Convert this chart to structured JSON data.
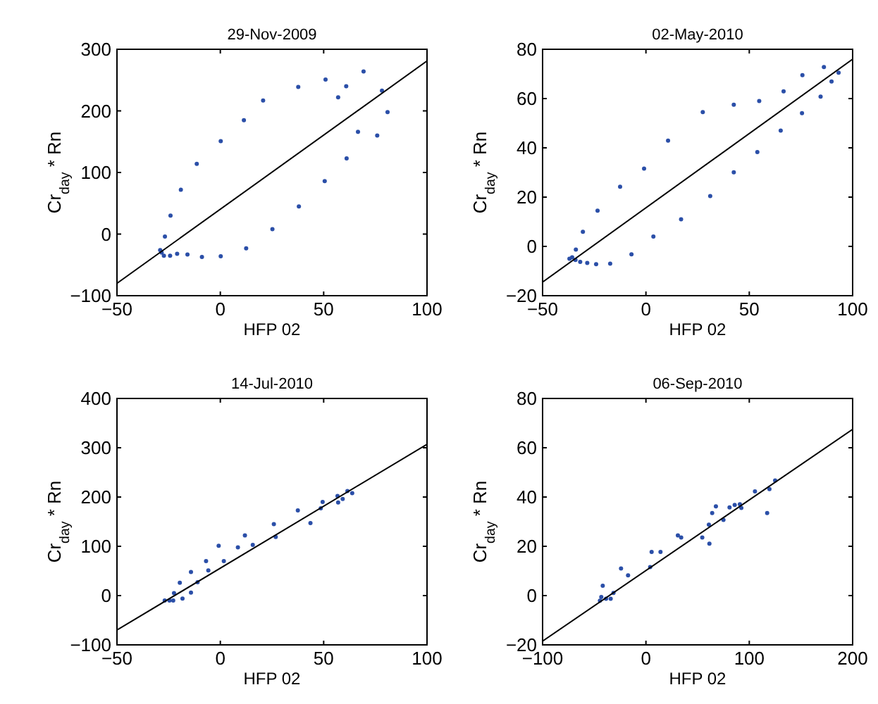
{
  "chart_data": [
    {
      "type": "scatter",
      "title": "29-Nov-2009",
      "xlabel": "HFP 02",
      "ylabel": "Cr$_{day}$ * Rn",
      "xlim": [
        -50,
        100
      ],
      "ylim": [
        -100,
        300
      ],
      "xticks": [
        -50,
        0,
        50,
        100
      ],
      "yticks": [
        -100,
        0,
        100,
        200,
        300
      ],
      "series": [
        {
          "type": "scatter",
          "color": "#2b4fa8",
          "marker": "circle",
          "x": [
            -26.8,
            -24.1,
            -19.1,
            -11.4,
            0.2,
            11.4,
            20.7,
            37.7,
            50.9,
            60.9,
            57,
            69.3,
            78.2,
            80.9,
            75.9,
            66.6,
            61.1,
            50.5,
            38,
            25.2,
            12.5,
            0.2,
            -8.9,
            -15.9,
            -20.9,
            -24.3,
            -27.3,
            -28.4,
            -29.1
          ],
          "values": [
            -4,
            30,
            72,
            114,
            151,
            185,
            217,
            239,
            251,
            240,
            222,
            264,
            233,
            198,
            160,
            166,
            123,
            86,
            45,
            8,
            -23,
            -36,
            -37,
            -33,
            -32,
            -35,
            -35,
            -30,
            -26
          ]
        },
        {
          "type": "line",
          "color": "#000000",
          "x": [
            -50,
            100
          ],
          "values": [
            -80,
            281
          ]
        }
      ]
    },
    {
      "type": "scatter",
      "title": "02-May-2010",
      "xlabel": "HFP 02",
      "ylabel": "Cr$_{day}$ * Rn",
      "xlim": [
        -50,
        100
      ],
      "ylim": [
        -20,
        80
      ],
      "xticks": [
        -50,
        0,
        50,
        100
      ],
      "yticks": [
        -20,
        0,
        20,
        40,
        60,
        80
      ],
      "series": [
        {
          "type": "scatter",
          "color": "#2b4fa8",
          "marker": "circle",
          "x": [
            -37,
            -35.7,
            -33.9,
            -30.5,
            -23.4,
            -12.5,
            -0.9,
            10.7,
            27.5,
            42.5,
            54.8,
            66.6,
            75.7,
            86.1,
            93.2,
            89.8,
            84.5,
            75.5,
            65.2,
            53.9,
            42.5,
            31.1,
            17,
            3.6,
            -7,
            -17.3,
            -24.1,
            -28.4,
            -31.8,
            -34.1
          ],
          "values": [
            -5,
            -4.4,
            -1.3,
            5.9,
            14.5,
            24.2,
            31.6,
            42.9,
            54.5,
            57.5,
            59,
            62.9,
            69.5,
            72.8,
            70.5,
            66.9,
            60.8,
            54.1,
            47,
            38.3,
            30.1,
            20.4,
            11,
            4,
            -3.2,
            -7,
            -7.2,
            -6.7,
            -6.3,
            -5.5
          ]
        },
        {
          "type": "line",
          "color": "#000000",
          "x": [
            -50,
            100
          ],
          "values": [
            -14.5,
            76
          ]
        }
      ]
    },
    {
      "type": "scatter",
      "title": "14-Jul-2010",
      "xlabel": "HFP 02",
      "ylabel": "Cr$_{day}$ * Rn",
      "xlim": [
        -50,
        100
      ],
      "ylim": [
        -100,
        400
      ],
      "xticks": [
        -50,
        0,
        50,
        100
      ],
      "yticks": [
        -100,
        0,
        100,
        200,
        300,
        400
      ],
      "series": [
        {
          "type": "scatter",
          "color": "#2b4fa8",
          "marker": "circle",
          "x": [
            -26.9,
            -24.6,
            -22.4,
            -22.8,
            -19.6,
            -18.3,
            -14.2,
            -14.2,
            -11,
            -6.9,
            -5.8,
            -0.8,
            1.7,
            8.5,
            11.9,
            15.7,
            25.9,
            26.8,
            37.5,
            43.6,
            48.6,
            49.5,
            56.7,
            57,
            59.2,
            61.5,
            63.8
          ],
          "values": [
            -10,
            -10,
            5,
            -10,
            26,
            -6,
            48,
            6,
            27,
            70,
            51,
            101,
            70,
            98,
            122,
            103,
            145,
            119,
            173,
            147,
            177,
            190,
            202,
            189,
            196,
            212,
            208
          ]
        },
        {
          "type": "line",
          "color": "#000000",
          "x": [
            -50,
            100
          ],
          "values": [
            -70,
            307
          ]
        }
      ]
    },
    {
      "type": "scatter",
      "title": "06-Sep-2010",
      "xlabel": "HFP 02",
      "ylabel": "Cr$_{day}$ * Rn",
      "xlim": [
        -100,
        200
      ],
      "ylim": [
        -20,
        80
      ],
      "xticks": [
        -100,
        0,
        100,
        200
      ],
      "yticks": [
        -20,
        0,
        20,
        40,
        60,
        80
      ],
      "series": [
        {
          "type": "scatter",
          "color": "#2b4fa8",
          "marker": "circle",
          "x": [
            -44.5,
            -41.8,
            -43.2,
            -38.6,
            -34.1,
            -31.4,
            -24.1,
            -17.3,
            4.1,
            5.5,
            14.1,
            30.9,
            34.1,
            54.5,
            61.4,
            60.9,
            64.1,
            67.7,
            75,
            80.9,
            85.9,
            90.9,
            92.3,
            105.5,
            117.3,
            119.5,
            125
          ],
          "values": [
            -2.1,
            4,
            -0.6,
            -1.3,
            -1.3,
            1.1,
            11,
            8.2,
            11.6,
            17.7,
            17.7,
            24.4,
            23.6,
            23.6,
            21.1,
            28.8,
            33.5,
            36.2,
            30.7,
            35.8,
            36.8,
            37.1,
            35.6,
            42.3,
            33.5,
            43.2,
            46.7
          ]
        },
        {
          "type": "line",
          "color": "#000000",
          "x": [
            -100,
            200
          ],
          "values": [
            -18.5,
            67.5
          ]
        }
      ]
    }
  ]
}
